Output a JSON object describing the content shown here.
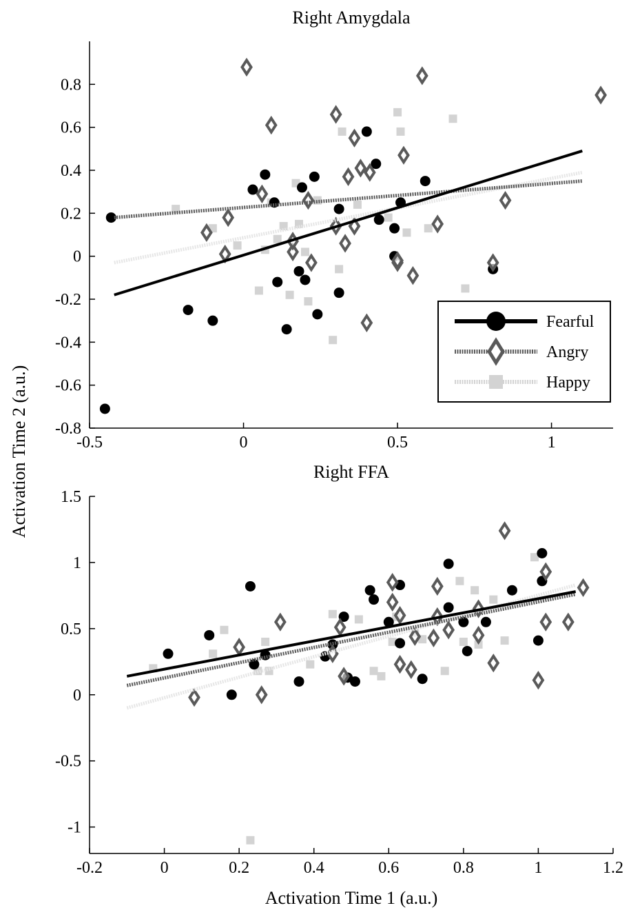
{
  "ylabel": "Activation Time 2 (a.u.)",
  "xlabel": "Activation Time 1 (a.u.)",
  "legend": [
    {
      "label": "Fearful",
      "marker": "circle",
      "color": "#000000"
    },
    {
      "label": "Angry",
      "marker": "diamond",
      "color": "#5a5a5a"
    },
    {
      "label": "Happy",
      "marker": "square",
      "color": "#d3d3d3"
    }
  ],
  "chart_data": [
    {
      "type": "scatter",
      "title": "Right Amygdala",
      "xlim": [
        -0.5,
        1.2
      ],
      "ylim": [
        -0.8,
        1.0
      ],
      "xticks": [
        -0.5,
        0,
        0.5,
        1
      ],
      "xtick_labels": [
        "-0.5",
        "0",
        "0.5",
        "1"
      ],
      "yticks": [
        -0.8,
        -0.6,
        -0.4,
        -0.2,
        0,
        0.2,
        0.4,
        0.6,
        0.8
      ],
      "ytick_labels": [
        "-0.8",
        "-0.6",
        "-0.4",
        "-0.2",
        "0",
        "0.2",
        "0.4",
        "0.6",
        "0.8"
      ],
      "legend_position": "lower-right",
      "series": [
        {
          "name": "Fearful",
          "marker": "circle",
          "color": "#000000",
          "x": [
            -0.43,
            -0.18,
            -0.1,
            0.03,
            0.07,
            0.1,
            0.11,
            0.14,
            0.18,
            0.19,
            0.2,
            0.23,
            0.24,
            0.31,
            0.31,
            0.4,
            0.43,
            0.44,
            0.49,
            0.49,
            0.51,
            0.59,
            0.81,
            -0.45
          ],
          "y": [
            0.18,
            -0.25,
            -0.3,
            0.31,
            0.38,
            0.25,
            -0.12,
            -0.34,
            -0.07,
            0.32,
            -0.11,
            0.37,
            -0.27,
            0.22,
            -0.17,
            0.58,
            0.43,
            0.17,
            0.0,
            0.13,
            0.25,
            0.35,
            -0.06,
            -0.71
          ],
          "fit": [
            [
              -0.42,
              -0.18
            ],
            [
              1.1,
              0.49
            ]
          ]
        },
        {
          "name": "Angry",
          "marker": "diamond",
          "color": "#5a5a5a",
          "x": [
            0.01,
            0.09,
            0.3,
            0.36,
            0.58,
            1.16,
            -0.12,
            -0.06,
            -0.05,
            0.06,
            0.16,
            0.16,
            0.21,
            0.22,
            0.3,
            0.33,
            0.34,
            0.36,
            0.38,
            0.4,
            0.41,
            0.5,
            0.5,
            0.52,
            0.55,
            0.63,
            0.81,
            0.85
          ],
          "y": [
            0.88,
            0.61,
            0.66,
            0.55,
            0.84,
            0.75,
            0.11,
            0.01,
            0.18,
            0.29,
            0.02,
            0.07,
            0.26,
            -0.03,
            0.14,
            0.06,
            0.37,
            0.14,
            0.41,
            -0.31,
            0.39,
            -0.03,
            -0.02,
            0.47,
            -0.09,
            0.15,
            -0.03,
            0.26
          ],
          "fit": [
            [
              -0.42,
              0.18
            ],
            [
              1.1,
              0.35
            ]
          ]
        },
        {
          "name": "Happy",
          "marker": "square",
          "color": "#d3d3d3",
          "x": [
            -0.22,
            -0.1,
            -0.02,
            0.05,
            0.07,
            0.09,
            0.11,
            0.13,
            0.15,
            0.17,
            0.18,
            0.2,
            0.21,
            0.24,
            0.29,
            0.31,
            0.32,
            0.37,
            0.47,
            0.5,
            0.51,
            0.53,
            0.6,
            0.68,
            0.72
          ],
          "y": [
            0.22,
            0.13,
            0.05,
            -0.16,
            0.03,
            0.25,
            0.08,
            0.14,
            -0.18,
            0.34,
            0.15,
            0.02,
            -0.21,
            0.26,
            -0.39,
            -0.06,
            0.58,
            0.24,
            0.18,
            0.67,
            0.58,
            0.11,
            0.13,
            0.64,
            -0.15
          ],
          "fit": [
            [
              -0.42,
              -0.03
            ],
            [
              1.1,
              0.39
            ]
          ]
        }
      ]
    },
    {
      "type": "scatter",
      "title": "Right FFA",
      "xlim": [
        -0.2,
        1.2
      ],
      "ylim": [
        -1.2,
        1.5
      ],
      "xticks": [
        -0.2,
        0,
        0.2,
        0.4,
        0.6,
        0.8,
        1,
        1.2
      ],
      "xtick_labels": [
        "-0.2",
        "0",
        "0.2",
        "0.4",
        "0.6",
        "0.8",
        "1",
        "1.2"
      ],
      "yticks": [
        -1,
        -0.5,
        0,
        0.5,
        1,
        1.5
      ],
      "ytick_labels": [
        "-1",
        "-0.5",
        "0",
        "0.5",
        "1",
        "1.5"
      ],
      "series": [
        {
          "name": "Fearful",
          "marker": "circle",
          "color": "#000000",
          "x": [
            0.01,
            0.12,
            0.18,
            0.23,
            0.24,
            0.27,
            0.36,
            0.43,
            0.45,
            0.48,
            0.49,
            0.51,
            0.55,
            0.56,
            0.6,
            0.63,
            0.63,
            0.69,
            0.76,
            0.76,
            0.8,
            0.81,
            0.86,
            0.93,
            1.0,
            1.01,
            1.01
          ],
          "y": [
            0.31,
            0.45,
            0.0,
            0.82,
            0.23,
            0.3,
            0.1,
            0.29,
            0.38,
            0.59,
            0.13,
            0.1,
            0.79,
            0.72,
            0.55,
            0.39,
            0.83,
            0.12,
            0.99,
            0.66,
            0.55,
            0.33,
            0.55,
            0.79,
            0.41,
            1.07,
            0.86
          ],
          "fit": [
            [
              -0.1,
              0.14
            ],
            [
              1.1,
              0.78
            ]
          ]
        },
        {
          "name": "Angry",
          "marker": "diamond",
          "color": "#5a5a5a",
          "x": [
            0.08,
            0.2,
            0.26,
            0.31,
            0.45,
            0.47,
            0.48,
            0.61,
            0.61,
            0.63,
            0.63,
            0.66,
            0.67,
            0.72,
            0.73,
            0.73,
            0.76,
            0.84,
            0.84,
            0.88,
            0.91,
            1.0,
            1.02,
            1.02,
            1.08,
            1.12
          ],
          "y": [
            -0.02,
            0.36,
            0.0,
            0.55,
            0.31,
            0.51,
            0.14,
            0.85,
            0.7,
            0.23,
            0.6,
            0.19,
            0.44,
            0.43,
            0.59,
            0.82,
            0.49,
            0.45,
            0.65,
            0.24,
            1.24,
            0.11,
            0.55,
            0.93,
            0.55,
            0.81
          ],
          "fit": [
            [
              -0.1,
              0.07
            ],
            [
              1.1,
              0.76
            ]
          ]
        },
        {
          "name": "Happy",
          "marker": "square",
          "color": "#d3d3d3",
          "x": [
            -0.03,
            0.13,
            0.16,
            0.23,
            0.25,
            0.27,
            0.28,
            0.39,
            0.45,
            0.52,
            0.56,
            0.58,
            0.61,
            0.62,
            0.67,
            0.69,
            0.75,
            0.79,
            0.8,
            0.83,
            0.84,
            0.88,
            0.91,
            0.99
          ],
          "y": [
            0.2,
            0.31,
            0.49,
            -1.1,
            0.18,
            0.4,
            0.18,
            0.23,
            0.61,
            0.57,
            0.18,
            0.14,
            0.4,
            0.59,
            0.47,
            0.42,
            0.18,
            0.86,
            0.4,
            0.79,
            0.38,
            0.72,
            0.41,
            1.04
          ],
          "fit": [
            [
              -0.1,
              -0.1
            ],
            [
              1.1,
              0.83
            ]
          ]
        }
      ]
    }
  ]
}
